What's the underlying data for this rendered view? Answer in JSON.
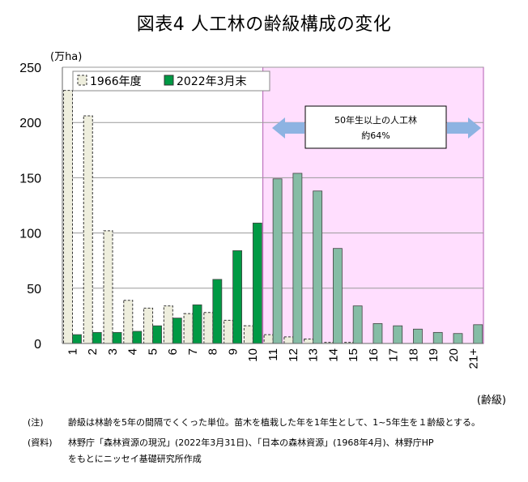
{
  "chart_data": {
    "type": "bar",
    "title": "図表4 人工林の齢級構成の変化",
    "ylabel": "(万ha)",
    "xlabel": "(齢級)",
    "ylim": [
      0,
      250
    ],
    "yticks": [
      0,
      50,
      100,
      150,
      200,
      250
    ],
    "categories": [
      "1",
      "2",
      "3",
      "4",
      "5",
      "6",
      "7",
      "8",
      "9",
      "10",
      "11",
      "12",
      "13",
      "14",
      "15",
      "16",
      "17",
      "18",
      "19",
      "20",
      "21+"
    ],
    "series": [
      {
        "name": "1966年度",
        "color": "#eeeedd",
        "values": [
          229,
          206,
          102,
          39,
          32,
          34,
          27,
          28,
          21,
          16,
          8,
          6,
          4,
          1,
          1,
          0,
          0,
          0,
          0,
          0,
          0
        ]
      },
      {
        "name": "2022年3月末",
        "color": "#009944",
        "values": [
          8,
          10,
          10,
          11,
          16,
          23,
          35,
          58,
          84,
          109,
          149,
          154,
          138,
          86,
          34,
          18,
          16,
          13,
          10,
          9,
          17
        ]
      }
    ],
    "highlight": {
      "from_category": "11",
      "to_category": "21+",
      "color": "#ffdefe",
      "bar_color": "#85bca5"
    },
    "annotation": {
      "line1": "50年生以上の人工林",
      "line2": "約64%"
    },
    "legend_position": "top-left"
  },
  "notes": {
    "note_label": "(注)",
    "note_text": "齢級は林齢を5年の間隔でくくった単位。苗木を植栽した年を1年生として、1~5年生を１齢級とする。",
    "source_label": "(資料)",
    "source_text": "林野庁「森林資源の現況」(2022年3月31日)、「日本の森林資源」(1968年4月)、林野庁HP",
    "source_text2": "をもとにニッセイ基礎研究所作成"
  }
}
